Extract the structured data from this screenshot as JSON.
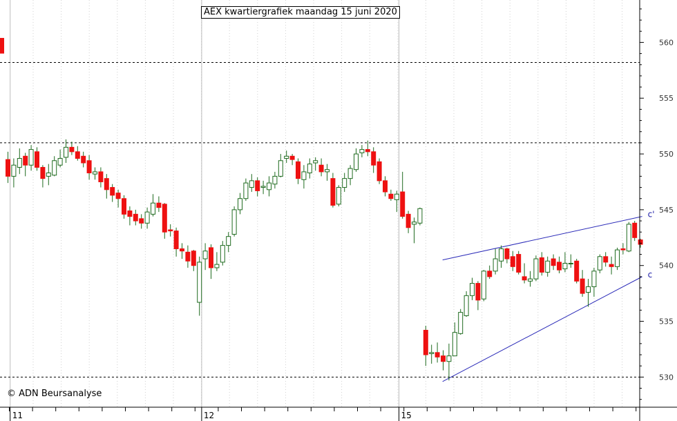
{
  "title": "AEX kwartiergrafiek maandag 15 juni 2020",
  "credit": "© ADN Beursanalyse",
  "colors": {
    "bullish": "#ffffff",
    "bearish": "#ee1111",
    "candle_outline": "#1e6a1e",
    "trendline": "#2a2ab8",
    "grid": "#000000"
  },
  "chart_data": {
    "type": "candlestick",
    "title": "AEX kwartiergrafiek maandag 15 juni 2020",
    "ylim": [
      527.3,
      563.8
    ],
    "y_ticks": [
      530,
      535,
      540,
      545,
      550,
      555,
      560
    ],
    "y_tick_labels": [
      "530",
      "535",
      "540",
      "545",
      "550",
      "555",
      "560"
    ],
    "horizontal_dashed_levels": [
      530.0,
      551.0,
      558.2
    ],
    "x_date_labels": [
      "11",
      "12",
      "15"
    ],
    "session_breaks_index": [
      1,
      34,
      68
    ],
    "candles": [
      [
        549.5,
        548.0,
        550.2,
        547.4
      ],
      [
        548.0,
        549.0,
        549.6,
        547.0
      ],
      [
        548.8,
        549.6,
        550.5,
        548.2
      ],
      [
        549.8,
        549.0,
        550.1,
        548.0
      ],
      [
        549.0,
        550.4,
        550.8,
        548.5
      ],
      [
        550.2,
        548.8,
        550.6,
        548.5
      ],
      [
        548.8,
        547.8,
        549.0,
        547.0
      ],
      [
        548.0,
        548.3,
        549.1,
        547.2
      ],
      [
        548.1,
        549.4,
        549.8,
        548.0
      ],
      [
        549.0,
        549.6,
        550.4,
        548.8
      ],
      [
        549.7,
        550.6,
        551.3,
        549.2
      ],
      [
        550.6,
        550.2,
        551.1,
        549.9
      ],
      [
        550.2,
        549.6,
        550.7,
        549.4
      ],
      [
        549.8,
        549.2,
        550.2,
        548.8
      ],
      [
        549.4,
        548.3,
        549.9,
        547.7
      ],
      [
        548.2,
        548.4,
        548.8,
        547.7
      ],
      [
        548.4,
        547.5,
        548.8,
        547.0
      ],
      [
        547.8,
        546.8,
        548.2,
        546.0
      ],
      [
        547.0,
        546.3,
        547.3,
        545.7
      ],
      [
        546.5,
        546.0,
        546.8,
        545.2
      ],
      [
        546.0,
        544.6,
        546.3,
        544.2
      ],
      [
        544.9,
        544.4,
        545.3,
        543.6
      ],
      [
        544.6,
        544.0,
        545.0,
        543.6
      ],
      [
        544.2,
        543.8,
        544.6,
        543.3
      ],
      [
        543.8,
        544.8,
        545.2,
        543.3
      ],
      [
        544.6,
        545.6,
        546.4,
        544.4
      ],
      [
        545.6,
        545.2,
        546.2,
        544.8
      ],
      [
        545.5,
        543.0,
        545.6,
        542.4
      ],
      [
        543.2,
        543.1,
        543.7,
        542.6
      ],
      [
        543.1,
        541.5,
        543.4,
        540.8
      ],
      [
        541.5,
        541.3,
        542.0,
        540.6
      ],
      [
        541.2,
        540.4,
        541.8,
        539.8
      ],
      [
        541.3,
        540.0,
        541.4,
        539.5
      ],
      [
        536.7,
        540.3,
        540.8,
        535.5
      ],
      [
        540.6,
        541.3,
        542.0,
        539.6
      ],
      [
        541.6,
        539.8,
        541.9,
        538.8
      ],
      [
        539.8,
        540.1,
        541.2,
        539.5
      ],
      [
        540.3,
        541.8,
        542.2,
        540.0
      ],
      [
        541.8,
        542.6,
        543.0,
        541.2
      ],
      [
        542.8,
        545.0,
        545.3,
        542.6
      ],
      [
        545.0,
        546.0,
        546.5,
        544.6
      ],
      [
        546.0,
        547.4,
        547.8,
        545.8
      ],
      [
        547.0,
        547.6,
        548.2,
        546.6
      ],
      [
        547.6,
        546.7,
        547.9,
        546.2
      ],
      [
        547.0,
        547.1,
        547.6,
        546.4
      ],
      [
        546.8,
        547.4,
        548.0,
        546.2
      ],
      [
        547.3,
        548.0,
        548.4,
        546.9
      ],
      [
        548.0,
        549.4,
        550.0,
        547.9
      ],
      [
        549.6,
        549.8,
        550.3,
        549.2
      ],
      [
        549.8,
        549.5,
        550.0,
        549.0
      ],
      [
        549.3,
        547.8,
        549.6,
        547.3
      ],
      [
        547.7,
        548.4,
        549.0,
        546.9
      ],
      [
        548.3,
        549.1,
        549.6,
        547.8
      ],
      [
        549.2,
        549.4,
        549.7,
        548.5
      ],
      [
        549.0,
        548.4,
        549.6,
        548.0
      ],
      [
        548.4,
        548.6,
        549.1,
        547.6
      ],
      [
        547.8,
        545.4,
        548.3,
        545.2
      ],
      [
        545.5,
        547.0,
        547.2,
        545.3
      ],
      [
        547.0,
        547.8,
        548.3,
        546.6
      ],
      [
        547.8,
        548.7,
        549.0,
        547.2
      ],
      [
        548.6,
        550.0,
        550.5,
        548.4
      ],
      [
        550.1,
        550.4,
        550.8,
        549.7
      ],
      [
        550.4,
        550.2,
        551.2,
        549.8
      ],
      [
        550.2,
        549.0,
        550.6,
        548.3
      ],
      [
        549.3,
        547.6,
        549.6,
        547.3
      ],
      [
        547.6,
        546.6,
        548.0,
        546.2
      ],
      [
        546.4,
        546.0,
        546.8,
        545.8
      ],
      [
        545.9,
        546.4,
        546.7,
        544.8
      ],
      [
        546.6,
        544.4,
        548.4,
        544.2
      ],
      [
        544.6,
        543.4,
        544.9,
        542.9
      ],
      [
        543.7,
        543.9,
        544.3,
        542.0
      ],
      [
        543.8,
        545.1,
        545.2,
        543.6
      ],
      [
        534.2,
        532.0,
        534.6,
        531.0
      ],
      [
        532.1,
        532.2,
        532.9,
        531.2
      ],
      [
        532.2,
        531.8,
        533.1,
        531.3
      ],
      [
        531.9,
        531.4,
        532.4,
        530.6
      ],
      [
        531.4,
        531.9,
        533.0,
        529.7
      ],
      [
        531.9,
        534.0,
        534.9,
        531.9
      ],
      [
        533.9,
        535.8,
        536.1,
        533.8
      ],
      [
        535.5,
        537.3,
        537.7,
        535.4
      ],
      [
        537.3,
        538.4,
        538.9,
        536.9
      ],
      [
        538.4,
        536.9,
        538.6,
        536.0
      ],
      [
        537.0,
        539.5,
        539.6,
        536.8
      ],
      [
        539.5,
        539.0,
        540.0,
        538.8
      ],
      [
        539.5,
        540.6,
        541.5,
        539.2
      ],
      [
        540.4,
        541.5,
        541.8,
        539.8
      ],
      [
        541.5,
        540.6,
        541.6,
        540.2
      ],
      [
        540.8,
        539.9,
        541.3,
        539.5
      ],
      [
        541.0,
        539.4,
        541.3,
        539.2
      ],
      [
        539.0,
        538.7,
        540.2,
        538.4
      ],
      [
        538.6,
        538.8,
        539.5,
        538.1
      ],
      [
        538.8,
        540.6,
        540.9,
        538.6
      ],
      [
        540.7,
        539.4,
        541.2,
        539.1
      ],
      [
        539.4,
        540.4,
        540.8,
        539.0
      ],
      [
        540.6,
        540.0,
        541.0,
        539.6
      ],
      [
        540.3,
        539.6,
        540.8,
        539.3
      ],
      [
        539.7,
        540.2,
        541.2,
        539.4
      ],
      [
        540.2,
        540.2,
        541.0,
        539.8
      ],
      [
        540.4,
        538.6,
        540.6,
        538.4
      ],
      [
        538.8,
        537.5,
        539.6,
        537.2
      ],
      [
        537.6,
        538.1,
        538.8,
        536.3
      ],
      [
        538.1,
        539.5,
        539.8,
        537.2
      ],
      [
        539.6,
        540.8,
        541.0,
        539.3
      ],
      [
        540.8,
        540.3,
        541.2,
        539.9
      ],
      [
        540.1,
        539.9,
        540.8,
        539.2
      ],
      [
        539.9,
        541.4,
        541.6,
        539.6
      ],
      [
        541.5,
        541.4,
        542.0,
        541.0
      ],
      [
        541.3,
        543.7,
        543.9,
        541.2
      ],
      [
        543.8,
        542.5,
        544.0,
        542.2
      ],
      [
        542.3,
        541.9,
        542.4,
        541.6
      ]
    ],
    "trendlines": [
      {
        "label": "c'",
        "from": [
          74.9,
          540.5
        ],
        "to": [
          109.3,
          544.4
        ]
      },
      {
        "label": "c",
        "from": [
          74.9,
          529.6
        ],
        "to": [
          109.3,
          539.0
        ]
      }
    ]
  }
}
